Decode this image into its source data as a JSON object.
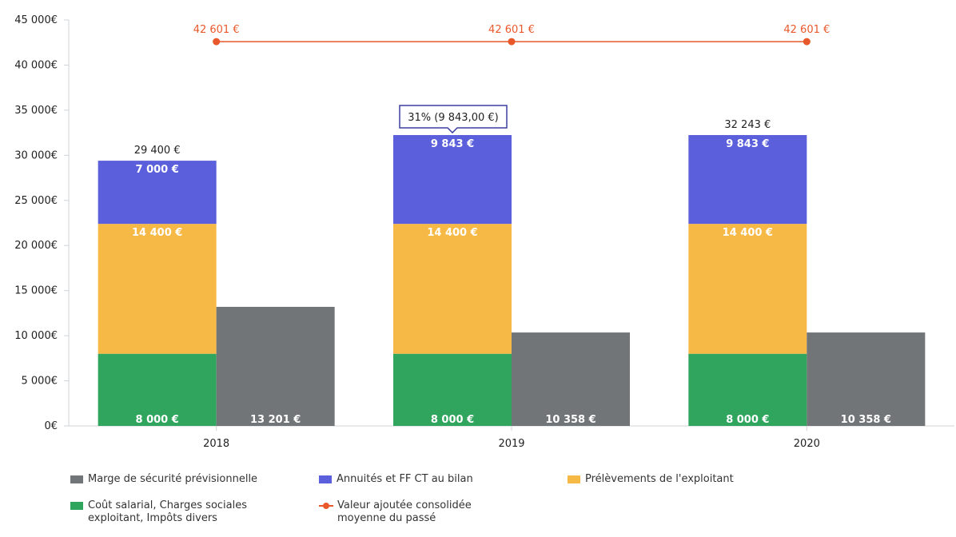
{
  "chart_data": {
    "type": "bar",
    "categories": [
      "2018",
      "2019",
      "2020"
    ],
    "ylim": [
      0,
      45000
    ],
    "ytick_values": [
      0,
      5000,
      10000,
      15000,
      20000,
      25000,
      30000,
      35000,
      40000,
      45000
    ],
    "ytick_labels": [
      "0€",
      "5 000€",
      "10 000€",
      "15 000€",
      "20 000€",
      "25 000€",
      "30 000€",
      "35 000€",
      "40 000€",
      "45 000€"
    ],
    "stacked_series": [
      {
        "name": "Coût salarial, Charges sociales\nexploitant, Impôts divers",
        "color": "#2fa55e",
        "values": [
          8000,
          8000,
          8000
        ],
        "labels": [
          "8 000 €",
          "8 000 €",
          "8 000 €"
        ]
      },
      {
        "name": "Prélèvements de l'exploitant",
        "color": "#f7b946",
        "values": [
          14400,
          14400,
          14400
        ],
        "labels": [
          "14 400 €",
          "14 400 €",
          "14 400 €"
        ]
      },
      {
        "name": "Annuités et FF CT au bilan",
        "color": "#5b5fdb",
        "values": [
          7000,
          9843,
          9843
        ],
        "labels": [
          "7 000 €",
          "9 843 €",
          "9 843 €"
        ]
      }
    ],
    "side_series": {
      "name": "Marge de sécurité prévisionnelle",
      "color": "#727578",
      "values": [
        13201,
        10358,
        10358
      ],
      "labels": [
        "13 201 €",
        "10 358 €",
        "10 358 €"
      ]
    },
    "line_series": {
      "name": "Valeur ajoutée consolidée\nmoyenne du passé",
      "color": "#e8582b",
      "values": [
        42601,
        42601,
        42601
      ],
      "labels": [
        "42 601 €",
        "42 601 €",
        "42 601 €"
      ]
    },
    "totals": [
      "29 400 €",
      null,
      "32 243 €"
    ],
    "tooltip": {
      "category_index": 1,
      "text": "31% (9 843,00 €)"
    },
    "legend_position": "bottom",
    "grid": false
  },
  "legend": [
    {
      "key": "marge",
      "label": "Marge de sécurité prévisionnelle",
      "color": "#727578",
      "kind": "box"
    },
    {
      "key": "annuites",
      "label": "Annuités et FF CT au bilan",
      "color": "#5b5fdb",
      "kind": "box"
    },
    {
      "key": "prelevements",
      "label": "Prélèvements de l'exploitant",
      "color": "#f7b946",
      "kind": "box"
    },
    {
      "key": "cout",
      "label": "Coût salarial, Charges sociales\nexploitant, Impôts divers",
      "color": "#2fa55e",
      "kind": "box"
    },
    {
      "key": "valeur",
      "label": "Valeur ajoutée consolidée\nmoyenne du passé",
      "color": "#e8582b",
      "kind": "line"
    }
  ]
}
